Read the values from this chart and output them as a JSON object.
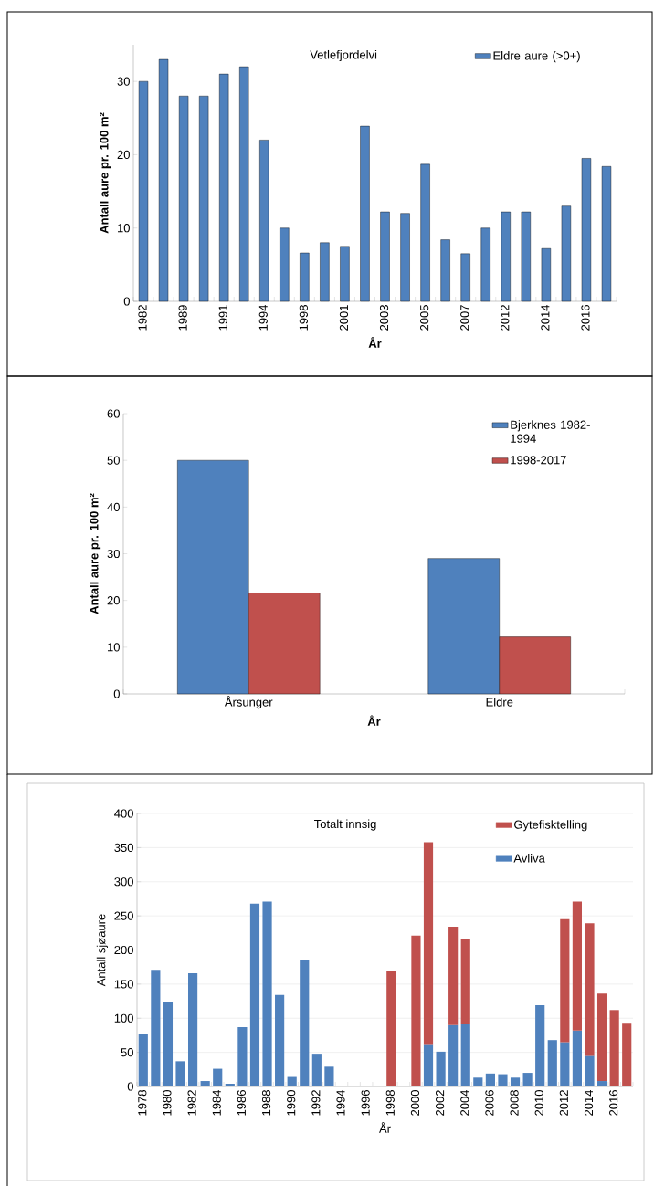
{
  "chart_data": [
    {
      "type": "bar",
      "title": "Vetlefjordelvi",
      "xlabel": "År",
      "ylabel": "Antall aure pr. 100 m²",
      "categories": [
        "1982",
        null,
        "1989",
        null,
        "1991",
        null,
        "1994",
        null,
        "1998",
        null,
        "2001",
        null,
        "2003",
        null,
        "2005",
        null,
        "2007",
        null,
        "2012",
        null,
        "2014",
        null,
        "2016",
        null
      ],
      "series": [
        {
          "name": "Eldre aure (>0+)",
          "color": "#4f81bd",
          "values": [
            30,
            33,
            28,
            28,
            31,
            32,
            22,
            10,
            6.6,
            8,
            7.5,
            23.9,
            12.2,
            12,
            18.7,
            8.4,
            6.5,
            10,
            12.2,
            12.2,
            7.2,
            13,
            19.5,
            18.4
          ]
        }
      ],
      "ylim": [
        0,
        35
      ],
      "yticks": [
        0,
        10,
        20,
        30
      ],
      "legend": "top right"
    },
    {
      "type": "bar",
      "xlabel": "År",
      "ylabel": "Antall aure pr. 100 m²",
      "categories": [
        "Årsunger",
        "Eldre"
      ],
      "series": [
        {
          "name": "Bjerknes 1982-1994",
          "color": "#4f81bd",
          "values": [
            50,
            29
          ]
        },
        {
          "name": "1998-2017",
          "color": "#c0504d",
          "values": [
            21.6,
            12.2
          ]
        }
      ],
      "ylim": [
        0,
        60
      ],
      "yticks": [
        0,
        10,
        20,
        30,
        40,
        50,
        60
      ],
      "legend": "top right"
    },
    {
      "type": "bar",
      "title": "Totalt innsig",
      "xlabel": "År",
      "ylabel": "Antall sjøaure",
      "stacked": true,
      "categories": [
        "1978",
        null,
        "1980",
        null,
        "1982",
        null,
        "1984",
        null,
        "1986",
        null,
        "1988",
        null,
        "1990",
        null,
        "1992",
        null,
        "1994",
        null,
        "1996",
        null,
        "1998",
        null,
        "2000",
        null,
        "2002",
        null,
        "2004",
        null,
        "2006",
        null,
        "2008",
        null,
        "2010",
        null,
        "2012",
        null,
        "2014",
        null,
        "2016",
        null
      ],
      "series": [
        {
          "name": "Avliva",
          "color": "#4f81bd",
          "values": [
            77,
            171,
            123,
            37,
            166,
            8,
            26,
            4,
            87,
            268,
            271,
            134,
            14,
            185,
            48,
            29,
            null,
            null,
            null,
            null,
            null,
            null,
            null,
            61,
            51,
            90,
            91,
            13,
            19,
            18,
            13,
            20,
            119,
            68,
            65,
            82,
            45,
            8,
            null,
            null
          ]
        },
        {
          "name": "Gytefisktelling",
          "color": "#c0504d",
          "values": [
            null,
            null,
            null,
            null,
            null,
            null,
            null,
            null,
            null,
            null,
            null,
            null,
            null,
            null,
            null,
            null,
            null,
            null,
            null,
            null,
            169,
            null,
            221,
            297,
            null,
            144,
            125,
            null,
            null,
            null,
            null,
            null,
            null,
            null,
            180,
            189,
            194,
            128,
            112,
            92
          ]
        }
      ],
      "ylim": [
        0,
        400
      ],
      "yticks": [
        0,
        50,
        100,
        150,
        200,
        250,
        300,
        350,
        400
      ],
      "grid": "y",
      "legend": "top right"
    }
  ]
}
